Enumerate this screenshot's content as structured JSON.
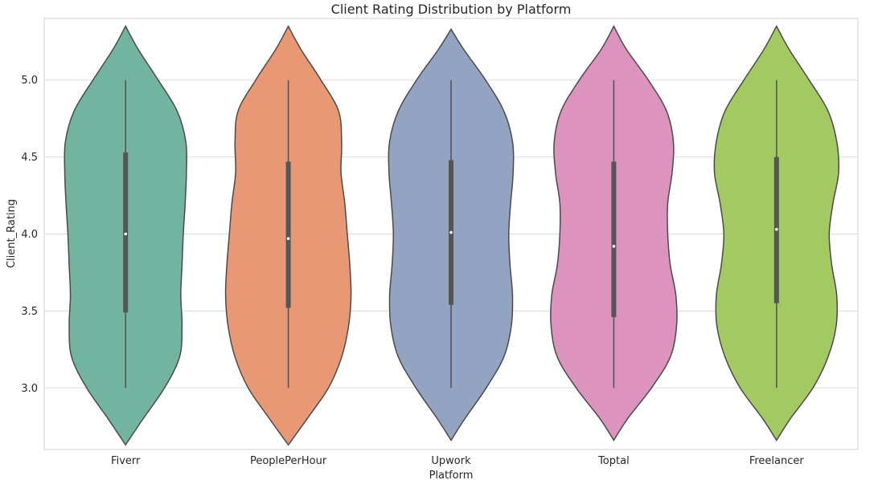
{
  "chart_data": {
    "type": "violin",
    "title": "Client Rating Distribution by Platform",
    "xlabel": "Platform",
    "ylabel": "Client_Rating",
    "ylim": [
      2.6,
      5.4
    ],
    "yticks": [
      3.0,
      3.5,
      4.0,
      4.5,
      5.0
    ],
    "ytick_labels": [
      "3.0",
      "3.5",
      "4.0",
      "4.5",
      "5.0"
    ],
    "grid": "horizontal",
    "categories": [
      "Fiverr",
      "PeoplePerHour",
      "Upwork",
      "Toptal",
      "Freelancer"
    ],
    "colors": [
      "#72b49f",
      "#e99875",
      "#93a4c3",
      "#dc93bd",
      "#a3c963"
    ],
    "series": [
      {
        "min": 3.0,
        "q1": 3.49,
        "median": 4.0,
        "q3": 4.53,
        "max": 5.0,
        "kde_min": 2.63,
        "kde_max": 5.35,
        "density_y": [
          2.63,
          2.8,
          3.0,
          3.2,
          3.4,
          3.6,
          3.8,
          4.0,
          4.2,
          4.4,
          4.6,
          4.8,
          5.0,
          5.2,
          5.35
        ],
        "density_w": [
          0.0,
          0.28,
          0.62,
          0.86,
          0.9,
          0.88,
          0.9,
          0.92,
          0.95,
          0.97,
          0.96,
          0.82,
          0.52,
          0.2,
          0.0
        ]
      },
      {
        "min": 3.0,
        "q1": 3.52,
        "median": 3.97,
        "q3": 4.47,
        "max": 5.0,
        "kde_min": 2.63,
        "kde_max": 5.35,
        "density_y": [
          2.63,
          2.8,
          3.0,
          3.2,
          3.4,
          3.6,
          3.8,
          4.0,
          4.2,
          4.4,
          4.6,
          4.8,
          5.0,
          5.2,
          5.35
        ],
        "density_w": [
          0.0,
          0.3,
          0.64,
          0.85,
          0.96,
          1.0,
          0.98,
          0.94,
          0.9,
          0.84,
          0.85,
          0.8,
          0.52,
          0.2,
          0.0
        ]
      },
      {
        "min": 3.0,
        "q1": 3.54,
        "median": 4.01,
        "q3": 4.48,
        "max": 5.0,
        "kde_min": 2.66,
        "kde_max": 5.33,
        "density_y": [
          2.66,
          2.8,
          3.0,
          3.2,
          3.4,
          3.6,
          3.8,
          4.0,
          4.2,
          4.4,
          4.6,
          4.8,
          5.0,
          5.2,
          5.33
        ],
        "density_w": [
          0.0,
          0.22,
          0.56,
          0.84,
          0.96,
          0.98,
          0.94,
          0.92,
          0.95,
          0.99,
          0.98,
          0.84,
          0.55,
          0.2,
          0.0
        ]
      },
      {
        "min": 3.0,
        "q1": 3.46,
        "median": 3.92,
        "q3": 4.47,
        "max": 5.0,
        "kde_min": 2.66,
        "kde_max": 5.35,
        "density_y": [
          2.66,
          2.8,
          3.0,
          3.2,
          3.4,
          3.6,
          3.8,
          4.0,
          4.2,
          4.4,
          4.6,
          4.8,
          5.0,
          5.2,
          5.35
        ],
        "density_w": [
          0.0,
          0.22,
          0.6,
          0.9,
          1.0,
          0.99,
          0.9,
          0.86,
          0.86,
          0.93,
          0.95,
          0.84,
          0.55,
          0.2,
          0.0
        ]
      },
      {
        "min": 3.0,
        "q1": 3.55,
        "median": 4.03,
        "q3": 4.5,
        "max": 5.0,
        "kde_min": 2.66,
        "kde_max": 5.35,
        "density_y": [
          2.66,
          2.8,
          3.0,
          3.2,
          3.4,
          3.6,
          3.8,
          4.0,
          4.2,
          4.4,
          4.6,
          4.8,
          5.0,
          5.2,
          5.35
        ],
        "density_w": [
          0.0,
          0.22,
          0.58,
          0.82,
          0.95,
          0.96,
          0.88,
          0.84,
          0.9,
          0.99,
          0.96,
          0.82,
          0.52,
          0.2,
          0.0
        ]
      }
    ]
  }
}
